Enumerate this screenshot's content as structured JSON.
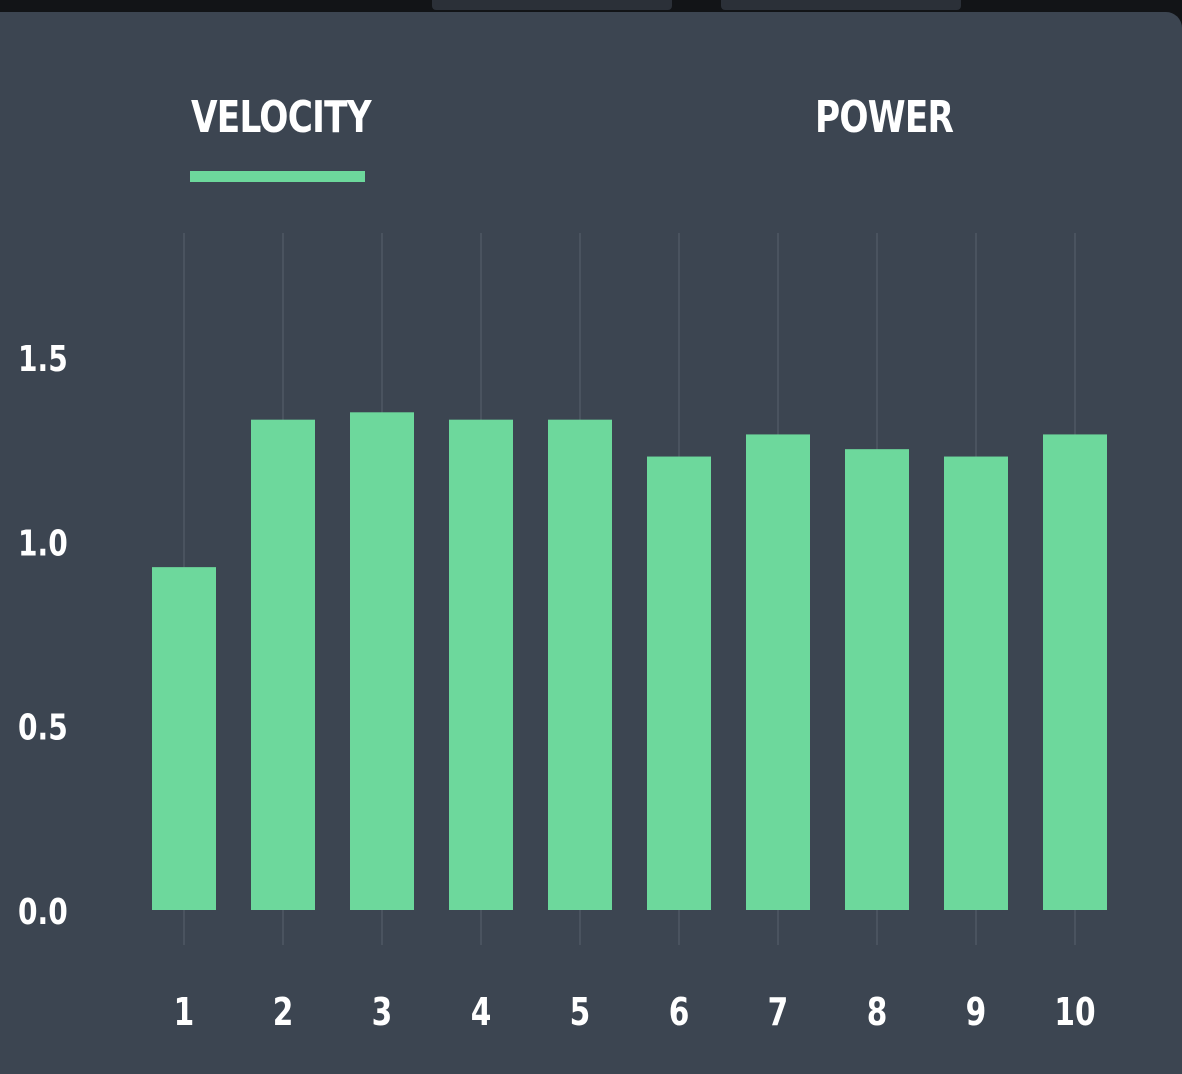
{
  "tabs": [
    {
      "label": "VELOCITY",
      "active": true
    },
    {
      "label": "POWER",
      "active": false
    }
  ],
  "colors": {
    "bar": "#6dd89c",
    "background": "#3c4551",
    "accent": "#6dd89c",
    "gridline": "#4e5864",
    "text": "#ffffff"
  },
  "chart_data": {
    "type": "bar",
    "title": "",
    "xlabel": "",
    "ylabel": "",
    "categories": [
      "1",
      "2",
      "3",
      "4",
      "5",
      "6",
      "7",
      "8",
      "9",
      "10"
    ],
    "values": [
      0.93,
      1.33,
      1.35,
      1.33,
      1.33,
      1.23,
      1.29,
      1.25,
      1.23,
      1.29
    ],
    "ylim": [
      0,
      1.5
    ],
    "yticks": [
      "0.0",
      "0.5",
      "1.0",
      "1.5"
    ],
    "grid": "vertical"
  }
}
